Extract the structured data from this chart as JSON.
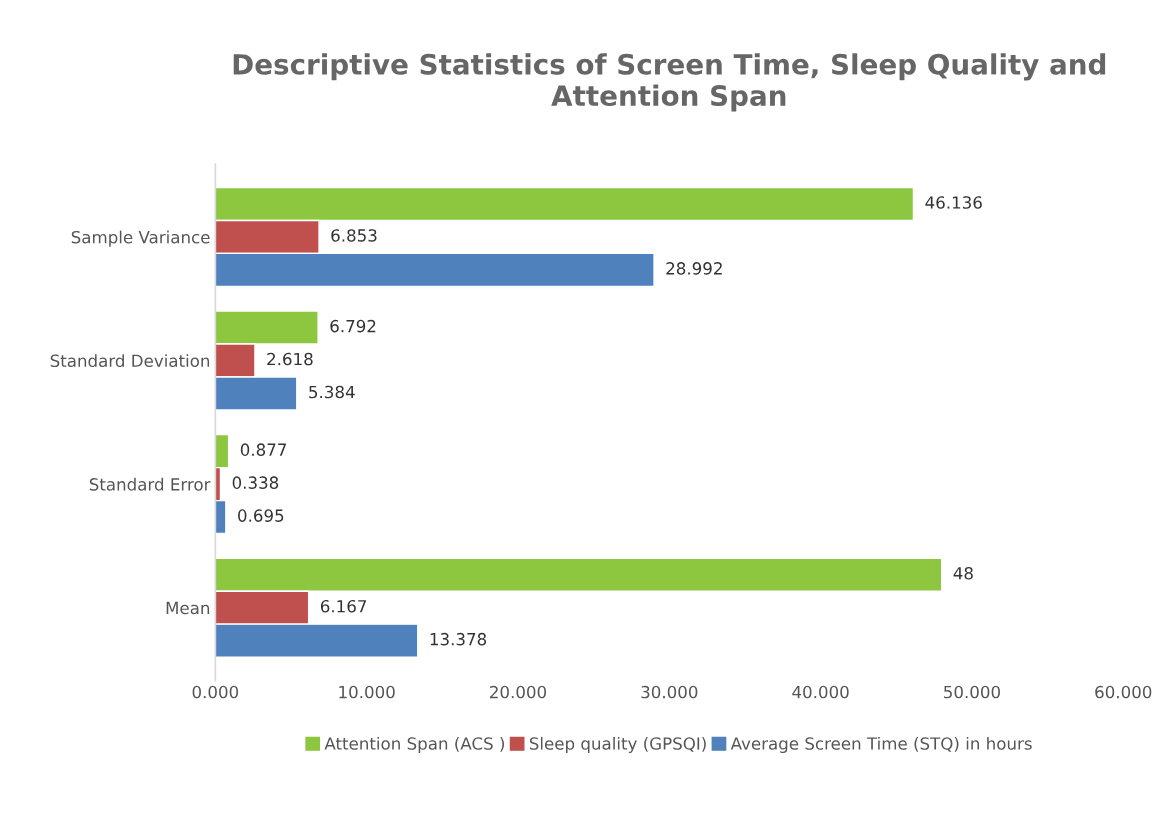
{
  "chart_data": {
    "type": "bar",
    "orientation": "horizontal",
    "title": "Descriptive Statistics of Screen Time, Sleep Quality and Attention Span",
    "categories": [
      "Sample Variance",
      "Standard Deviation",
      "Standard Error",
      "Mean"
    ],
    "series": [
      {
        "name": "Attention Span (ACS )",
        "color": "#8dc63f",
        "values": [
          46.136,
          6.792,
          0.877,
          48
        ]
      },
      {
        "name": "Sleep quality (GPSQI)",
        "color": "#c0504d",
        "values": [
          6.853,
          2.618,
          0.338,
          6.167
        ]
      },
      {
        "name": "Average Screen Time (STQ) in hours",
        "color": "#4f81bd",
        "values": [
          28.992,
          5.384,
          0.695,
          13.378
        ]
      }
    ],
    "xlim": [
      0,
      60
    ],
    "xticks": [
      {
        "value": 0,
        "label": "0.000"
      },
      {
        "value": 10,
        "label": "10.000"
      },
      {
        "value": 20,
        "label": "20.000"
      },
      {
        "value": 30,
        "label": "30.000"
      },
      {
        "value": 40,
        "label": "40.000"
      },
      {
        "value": 50,
        "label": "50.000"
      },
      {
        "value": 60,
        "label": "60.000"
      }
    ],
    "data_labels": true,
    "legend": "bottom",
    "grid": false
  }
}
